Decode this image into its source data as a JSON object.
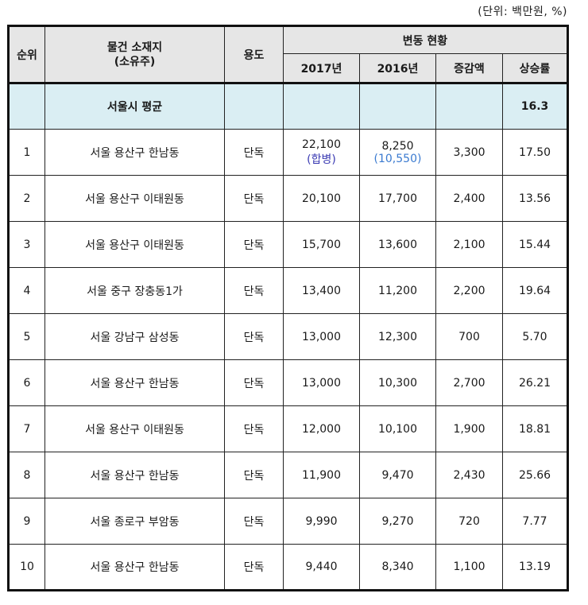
{
  "unit_note": "(단위: 백만원, %)",
  "header": {
    "rank": "순위",
    "location_line1": "물건 소재지",
    "location_line2": "(소유주)",
    "use": "용도",
    "change_group": "변동 현황",
    "y2017": "2017년",
    "y2016": "2016년",
    "diff": "증감액",
    "rate": "상승률"
  },
  "average_row": {
    "label": "서울시 평균",
    "rate": "16.3"
  },
  "rows": [
    {
      "rank": "1",
      "location": "서울 용산구 한남동",
      "use": "단독",
      "y2017": "22,100",
      "y2017_note": "(합병)",
      "y2016": "8,250",
      "y2016_note": "(10,550)",
      "diff": "3,300",
      "rate": "17.50"
    },
    {
      "rank": "2",
      "location": "서울 용산구 이태원동",
      "use": "단독",
      "y2017": "20,100",
      "y2016": "17,700",
      "diff": "2,400",
      "rate": "13.56"
    },
    {
      "rank": "3",
      "location": "서울 용산구 이태원동",
      "use": "단독",
      "y2017": "15,700",
      "y2016": "13,600",
      "diff": "2,100",
      "rate": "15.44"
    },
    {
      "rank": "4",
      "location": "서울 중구 장충동1가",
      "use": "단독",
      "y2017": "13,400",
      "y2016": "11,200",
      "diff": "2,200",
      "rate": "19.64"
    },
    {
      "rank": "5",
      "location": "서울 강남구 삼성동",
      "use": "단독",
      "y2017": "13,000",
      "y2016": "12,300",
      "diff": "700",
      "rate": "5.70"
    },
    {
      "rank": "6",
      "location": "서울 용산구 한남동",
      "use": "단독",
      "y2017": "13,000",
      "y2016": "10,300",
      "diff": "2,700",
      "rate": "26.21"
    },
    {
      "rank": "7",
      "location": "서울 용산구 이태원동",
      "use": "단독",
      "y2017": "12,000",
      "y2016": "10,100",
      "diff": "1,900",
      "rate": "18.81"
    },
    {
      "rank": "8",
      "location": "서울 용산구 한남동",
      "use": "단독",
      "y2017": "11,900",
      "y2016": "9,470",
      "diff": "2,430",
      "rate": "25.66"
    },
    {
      "rank": "9",
      "location": "서울 종로구 부암동",
      "use": "단독",
      "y2017": "9,990",
      "y2016": "9,270",
      "diff": "720",
      "rate": "7.77"
    },
    {
      "rank": "10",
      "location": "서울 용산구 한남동",
      "use": "단독",
      "y2017": "9,440",
      "y2016": "8,340",
      "diff": "1,100",
      "rate": "13.19"
    }
  ],
  "colors": {
    "header_bg": "#e6e6e6",
    "average_row_bg": "#daeef3",
    "merge_note": "#3b3bb3",
    "prev_value_note": "#3a7ad0"
  }
}
